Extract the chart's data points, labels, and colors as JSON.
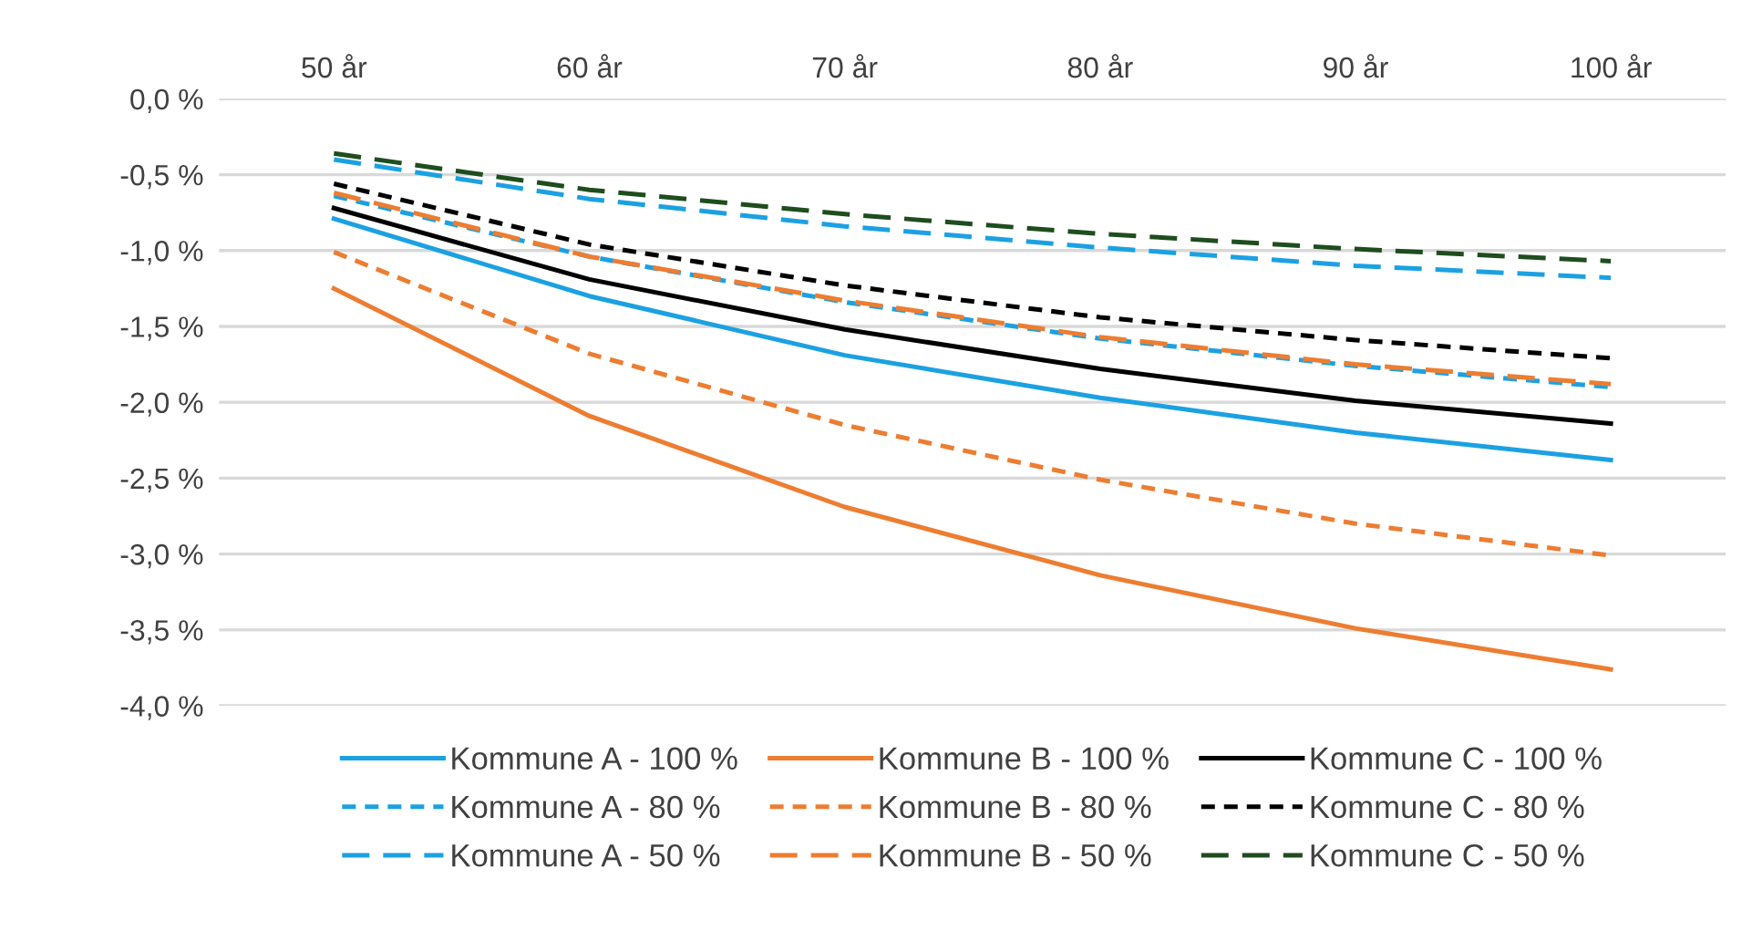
{
  "chart_data": {
    "type": "line",
    "categories": [
      "50 år",
      "60 år",
      "70 år",
      "80 år",
      "90 år",
      "100 år"
    ],
    "ylim": [
      -4.0,
      0.0
    ],
    "yticks": [
      {
        "value": 0,
        "label": "0,0 %"
      },
      {
        "value": -0.5,
        "label": "-0,5 %"
      },
      {
        "value": -1,
        "label": "-1,0 %"
      },
      {
        "value": -1.5,
        "label": "-1,5 %"
      },
      {
        "value": -2,
        "label": "-2,0 %"
      },
      {
        "value": -2.5,
        "label": "-2,5 %"
      },
      {
        "value": -3,
        "label": "-3,0 %"
      },
      {
        "value": -3.5,
        "label": "-3,5 %"
      },
      {
        "value": -4,
        "label": "-4,0 %"
      }
    ],
    "grid": "y",
    "legend": "bottom",
    "marker": "none",
    "series": [
      {
        "name": "Kommune A - 100 %",
        "color": "#1ba1e2",
        "line_style": "solid",
        "values": [
          -0.79,
          -1.3,
          -1.69,
          -1.97,
          -2.2,
          -2.38
        ]
      },
      {
        "name": "Kommune B - 100 %",
        "color": "#ed7d31",
        "line_style": "solid",
        "values": [
          -1.25,
          -2.09,
          -2.69,
          -3.14,
          -3.49,
          -3.76
        ]
      },
      {
        "name": "Kommune C - 100 %",
        "color": "#000000",
        "line_style": "solid",
        "values": [
          -0.72,
          -1.19,
          -1.52,
          -1.78,
          -1.99,
          -2.14
        ]
      },
      {
        "name": "Kommune A - 80 %",
        "color": "#1ba1e2",
        "line_style": "dotted",
        "values": [
          -0.64,
          -1.04,
          -1.34,
          -1.58,
          -1.76,
          -1.9
        ]
      },
      {
        "name": "Kommune B - 80 %",
        "color": "#ed7d31",
        "line_style": "dotted",
        "values": [
          -1.01,
          -1.68,
          -2.15,
          -2.51,
          -2.8,
          -3.01
        ]
      },
      {
        "name": "Kommune C - 80 %",
        "color": "#000000",
        "line_style": "dotted",
        "values": [
          -0.56,
          -0.96,
          -1.23,
          -1.44,
          -1.59,
          -1.71
        ]
      },
      {
        "name": "Kommune A - 50 %",
        "color": "#1ba1e2",
        "line_style": "dashed",
        "values": [
          -0.4,
          -0.66,
          -0.84,
          -0.98,
          -1.1,
          -1.18
        ]
      },
      {
        "name": "Kommune B - 50 %",
        "color": "#ed7d31",
        "line_style": "dashed",
        "values": [
          -0.62,
          -1.04,
          -1.33,
          -1.57,
          -1.75,
          -1.88
        ]
      },
      {
        "name": "Kommune C - 50 %",
        "color": "#1e4d1e",
        "line_style": "dashed",
        "values": [
          -0.36,
          -0.6,
          -0.76,
          -0.89,
          -0.99,
          -1.07
        ]
      }
    ]
  }
}
